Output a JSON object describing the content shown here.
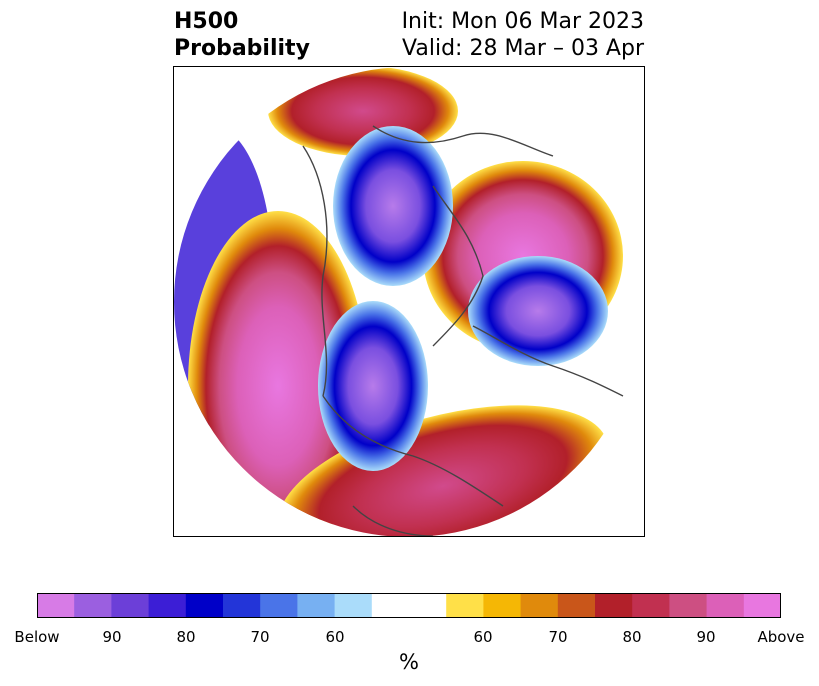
{
  "header": {
    "field": "H500",
    "product": "Probability",
    "init": "Init: Mon 06 Mar 2023",
    "valid": "Valid: 28 Mar – 03 Apr"
  },
  "colorbar": {
    "unit": "%",
    "tick_labels": [
      "Below",
      "90",
      "80",
      "70",
      "60",
      "60",
      "70",
      "80",
      "90",
      "Above"
    ],
    "below_colors": [
      "#d77be6",
      "#9b5fe0",
      "#6c3fd8",
      "#3c1ed6",
      "#0000c8",
      "#2335d8",
      "#4a74e8",
      "#77b0f2",
      "#aadcfa"
    ],
    "neutral_color": "#ffffff",
    "above_colors": [
      "#ffe048",
      "#f5b705",
      "#e08a0c",
      "#c9561a",
      "#b2202a",
      "#c13050",
      "#cd4f82",
      "#dc60b8",
      "#e877e0"
    ]
  },
  "map": {
    "projection": "north polar stereographic",
    "coastline_color": "#444444"
  }
}
